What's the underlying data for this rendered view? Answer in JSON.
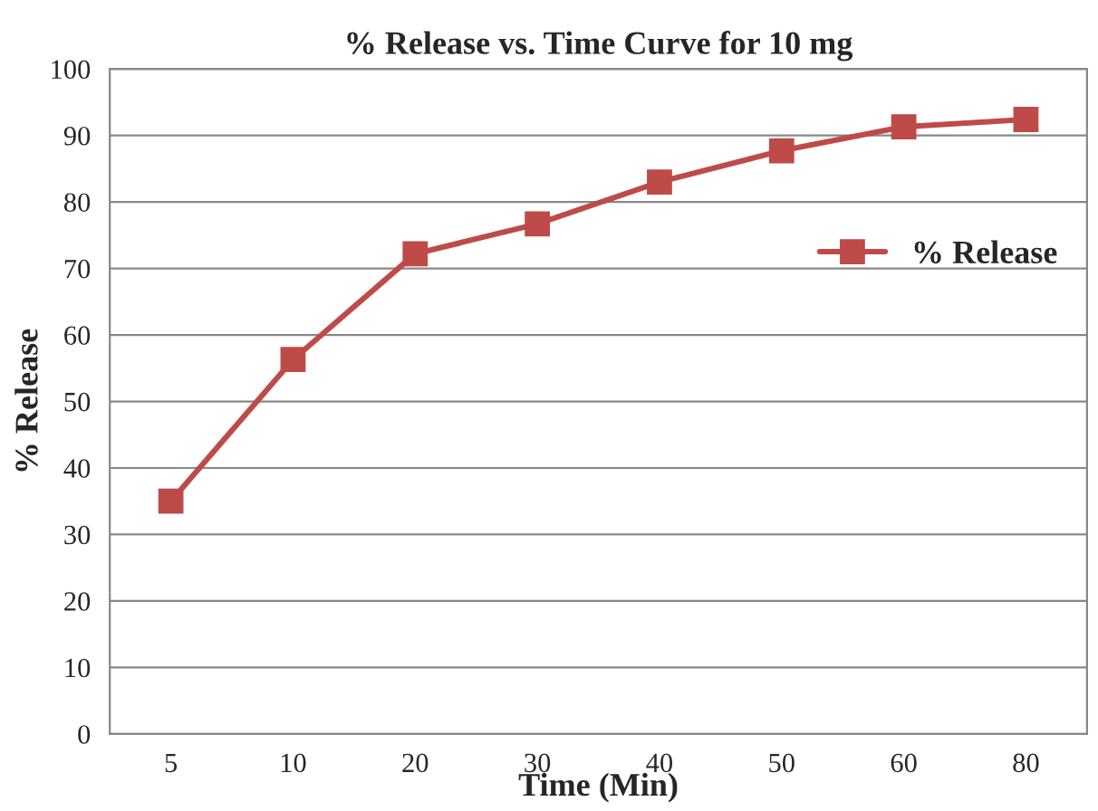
{
  "chart_data": {
    "type": "line",
    "title": "% Release vs. Time Curve for 10 mg",
    "xlabel": "Time (Min)",
    "ylabel": "% Release",
    "categories": [
      "5",
      "10",
      "20",
      "30",
      "40",
      "50",
      "60",
      "80"
    ],
    "series": [
      {
        "name": "% Release",
        "color": "#be4b48",
        "values": [
          35.0,
          56.3,
          72.2,
          76.7,
          83.0,
          87.7,
          91.3,
          92.4
        ]
      }
    ],
    "ylim": [
      0,
      100
    ],
    "yticks": [
      0,
      10,
      20,
      30,
      40,
      50,
      60,
      70,
      80,
      90,
      100
    ],
    "grid": "y",
    "legend": "right",
    "marker": "square",
    "line_style": "solid"
  }
}
